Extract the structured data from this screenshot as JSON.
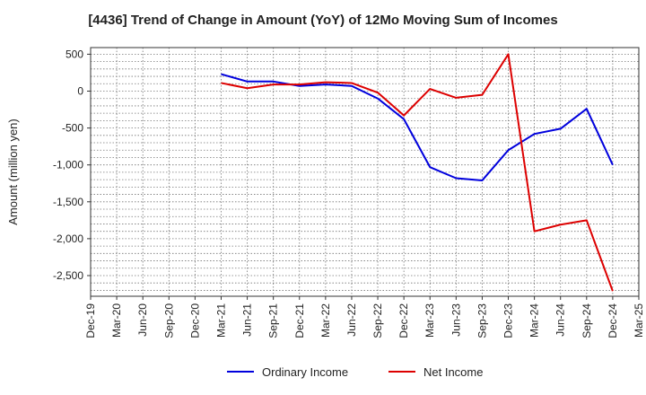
{
  "chart_data": {
    "type": "line",
    "title": "[4436]  Trend of Change in Amount (YoY) of 12Mo Moving Sum of Incomes",
    "xlabel": "",
    "ylabel": "Amount (million yen)",
    "ylim": [
      -2780,
      590
    ],
    "y_ticks": [
      500,
      0,
      -500,
      -1000,
      -1500,
      -2000,
      -2500
    ],
    "y_tick_labels": [
      "500",
      "0",
      "-500",
      "-1,000",
      "-1,500",
      "-2,000",
      "-2,500"
    ],
    "categories": [
      "Dec-19",
      "Mar-20",
      "Jun-20",
      "Sep-20",
      "Dec-20",
      "Mar-21",
      "Jun-21",
      "Sep-21",
      "Dec-21",
      "Mar-22",
      "Jun-22",
      "Sep-22",
      "Dec-22",
      "Mar-23",
      "Jun-23",
      "Sep-23",
      "Dec-23",
      "Mar-24",
      "Jun-24",
      "Sep-24",
      "Dec-24",
      "Mar-25"
    ],
    "grid": true,
    "legend_position": "bottom",
    "series": [
      {
        "name": "Ordinary Income",
        "color": "#0000dd",
        "values": [
          null,
          null,
          null,
          null,
          null,
          230,
          130,
          130,
          70,
          90,
          70,
          -100,
          -380,
          -1030,
          -1180,
          -1210,
          -800,
          -580,
          -510,
          -240,
          -1000,
          null
        ]
      },
      {
        "name": "Net Income",
        "color": "#dd0000",
        "values": [
          null,
          null,
          null,
          null,
          null,
          110,
          40,
          90,
          90,
          120,
          110,
          -20,
          -330,
          30,
          -90,
          -50,
          500,
          -1900,
          -1810,
          -1750,
          -2710,
          null
        ]
      }
    ]
  }
}
